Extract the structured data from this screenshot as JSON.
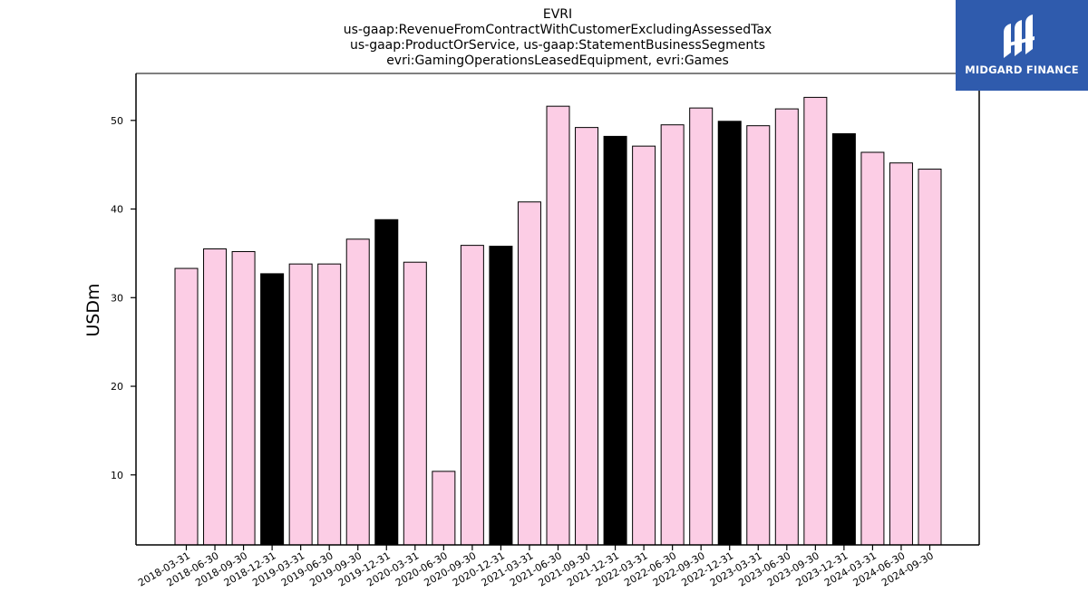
{
  "colors": {
    "regular": "#fccde5",
    "year_end": "#000000",
    "logo_bg": "#2f5bad"
  },
  "chart_data": {
    "type": "bar",
    "title_lines": [
      "EVRI",
      "us-gaap:RevenueFromContractWithCustomerExcludingAssessedTax",
      "us-gaap:ProductOrService, us-gaap:StatementBusinessSegments",
      "evri:GamingOperationsLeasedEquipment, evri:Games"
    ],
    "xlabel": "",
    "ylabel": "USDm",
    "ylim": [
      2.1,
      55.3
    ],
    "yticks": [
      10,
      20,
      30,
      40,
      50
    ],
    "grid": false,
    "categories": [
      "2018-03-31",
      "2018-06-30",
      "2018-09-30",
      "2018-12-31",
      "2019-03-31",
      "2019-06-30",
      "2019-09-30",
      "2019-12-31",
      "2020-03-31",
      "2020-06-30",
      "2020-09-30",
      "2020-12-31",
      "2021-03-31",
      "2021-06-30",
      "2021-09-30",
      "2021-12-31",
      "2022-03-31",
      "2022-06-30",
      "2022-09-30",
      "2022-12-31",
      "2023-03-31",
      "2023-06-30",
      "2023-09-30",
      "2023-12-31",
      "2024-03-31",
      "2024-06-30",
      "2024-09-30"
    ],
    "values": [
      33.3,
      35.5,
      35.2,
      32.7,
      33.8,
      33.8,
      36.6,
      38.8,
      34.0,
      10.4,
      35.9,
      35.8,
      40.8,
      51.6,
      49.2,
      48.2,
      47.1,
      49.5,
      51.4,
      49.9,
      49.4,
      51.3,
      52.6,
      48.5,
      46.4,
      45.2,
      44.5
    ],
    "highlight_year_end": [
      false,
      false,
      false,
      true,
      false,
      false,
      false,
      true,
      false,
      false,
      false,
      true,
      false,
      false,
      false,
      true,
      false,
      false,
      false,
      true,
      false,
      false,
      false,
      true,
      false,
      false,
      false
    ]
  },
  "logo": {
    "text": "MIDGARD FINANCE",
    "icon": "midgard-logo-icon"
  }
}
